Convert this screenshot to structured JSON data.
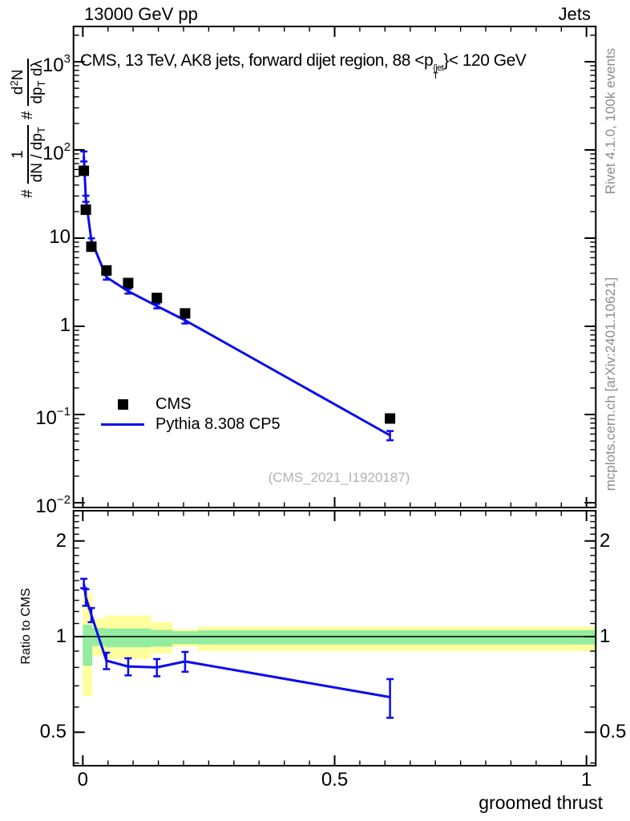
{
  "header": {
    "left": "13000 GeV pp",
    "right": "Jets"
  },
  "title": {
    "pre": "CMS, 13 TeV, AK8 jets, forward dijet region, 88 <p",
    "sup": "{jet",
    "sub": "T",
    "post": "}< 120 GeV"
  },
  "ylabel": {
    "hash1": "#",
    "f1num": "1",
    "f1den_a": "dN / dp",
    "f1den_sub": "T",
    "hash2": "#",
    "f2num_a": "d",
    "f2num_sup": "2",
    "f2num_b": "N",
    "f2den_a": "dp",
    "f2den_sub": "T",
    "f2den_b": " dλ"
  },
  "legend": {
    "items": [
      {
        "label": "CMS",
        "marker": "square",
        "color": "#000000"
      },
      {
        "label": "Pythia 8.308 CP5",
        "marker": "line",
        "color": "#0b0bee"
      }
    ]
  },
  "watermark": "(CMS_2021_I1920187)",
  "side_notes": {
    "top": "Rivet 4.1.0,  100k events",
    "bottom": "mcplots.cern.ch [arXiv:2401.10621]"
  },
  "colors": {
    "pythia_blue": "#0b0bee",
    "cms_black": "#000000",
    "band_yellow": "#ffff9e",
    "band_green": "#93ec9f",
    "gray_text": "#8c8c8c",
    "watermark_gray": "#b2b2b2",
    "frame_black": "#000000"
  },
  "axes": {
    "x": {
      "label": "groomed thrust",
      "min": -0.0185,
      "max": 1.0185,
      "minor_step": 0.05,
      "majors": [
        {
          "v": 0,
          "t": "0"
        },
        {
          "v": 0.5,
          "t": "0.5"
        },
        {
          "v": 1,
          "t": "1"
        }
      ]
    },
    "y_main": {
      "log": true,
      "min": 0.0088,
      "max": 2512,
      "majors": [
        {
          "v": 1000,
          "base": "10",
          "exp": "3"
        },
        {
          "v": 100,
          "base": "10",
          "exp": "2"
        },
        {
          "v": 10,
          "base": "10",
          "exp": ""
        },
        {
          "v": 1,
          "base": "1",
          "exp": ""
        },
        {
          "v": 0.1,
          "base": "10",
          "exp": "−1"
        },
        {
          "v": 0.01,
          "base": "10",
          "exp": "−2"
        }
      ]
    },
    "y_ratio": {
      "label": "Ratio to CMS",
      "log": true,
      "min": 0.392,
      "max": 2.49,
      "majors": [
        {
          "v": 2,
          "t": "2"
        },
        {
          "v": 1,
          "t": "1"
        },
        {
          "v": 0.5,
          "t": "0.5"
        }
      ]
    }
  },
  "chart_data": {
    "type": "line",
    "title": "CMS, 13 TeV, AK8 jets, forward dijet region, 88 <pT{jet}< 120 GeV",
    "xlabel": "groomed thrust",
    "ylabel": "# 1/(dN/dpT) # d2N/(dpT dλ)",
    "x": [
      0.002,
      0.006,
      0.017,
      0.047,
      0.09,
      0.147,
      0.203,
      0.61
    ],
    "series": [
      {
        "name": "CMS",
        "style": "squares",
        "color": "#000000",
        "values": [
          58,
          21,
          8.0,
          4.3,
          3.1,
          2.1,
          1.4,
          0.09
        ]
      },
      {
        "name": "Pythia 8.308 CP5",
        "style": "line",
        "color": "#0b0bee",
        "values": [
          85,
          28,
          9.4,
          3.6,
          2.5,
          1.7,
          1.17,
          0.058
        ],
        "yerr_rel": [
          0.13,
          0.08,
          0.06,
          0.06,
          0.06,
          0.06,
          0.08,
          0.12
        ]
      }
    ],
    "ratio": {
      "label": "Ratio to CMS",
      "values": [
        1.47,
        1.33,
        1.17,
        0.84,
        0.805,
        0.8,
        0.835,
        0.645
      ],
      "err": [
        0.05,
        0.08,
        0.06,
        0.05,
        0.05,
        0.05,
        0.06,
        0.09
      ]
    },
    "bands": [
      {
        "x0": 0.0,
        "x1": 0.019,
        "yellow": [
          0.65,
          1.37
        ],
        "green": [
          0.81,
          1.09
        ]
      },
      {
        "x0": 0.019,
        "x1": 0.045,
        "yellow": [
          0.87,
          1.14
        ],
        "green": [
          0.935,
          1.065
        ]
      },
      {
        "x0": 0.045,
        "x1": 0.135,
        "yellow": [
          0.85,
          1.165
        ],
        "green": [
          0.925,
          1.06
        ]
      },
      {
        "x0": 0.135,
        "x1": 0.178,
        "yellow": [
          0.885,
          1.11
        ],
        "green": [
          0.93,
          1.05
        ]
      },
      {
        "x0": 0.178,
        "x1": 0.228,
        "yellow": [
          0.93,
          1.055
        ],
        "green": [
          0.947,
          1.04
        ]
      },
      {
        "x0": 0.228,
        "x1": 1.0185,
        "yellow": [
          0.9,
          1.075
        ],
        "green": [
          0.944,
          1.047
        ]
      }
    ]
  }
}
